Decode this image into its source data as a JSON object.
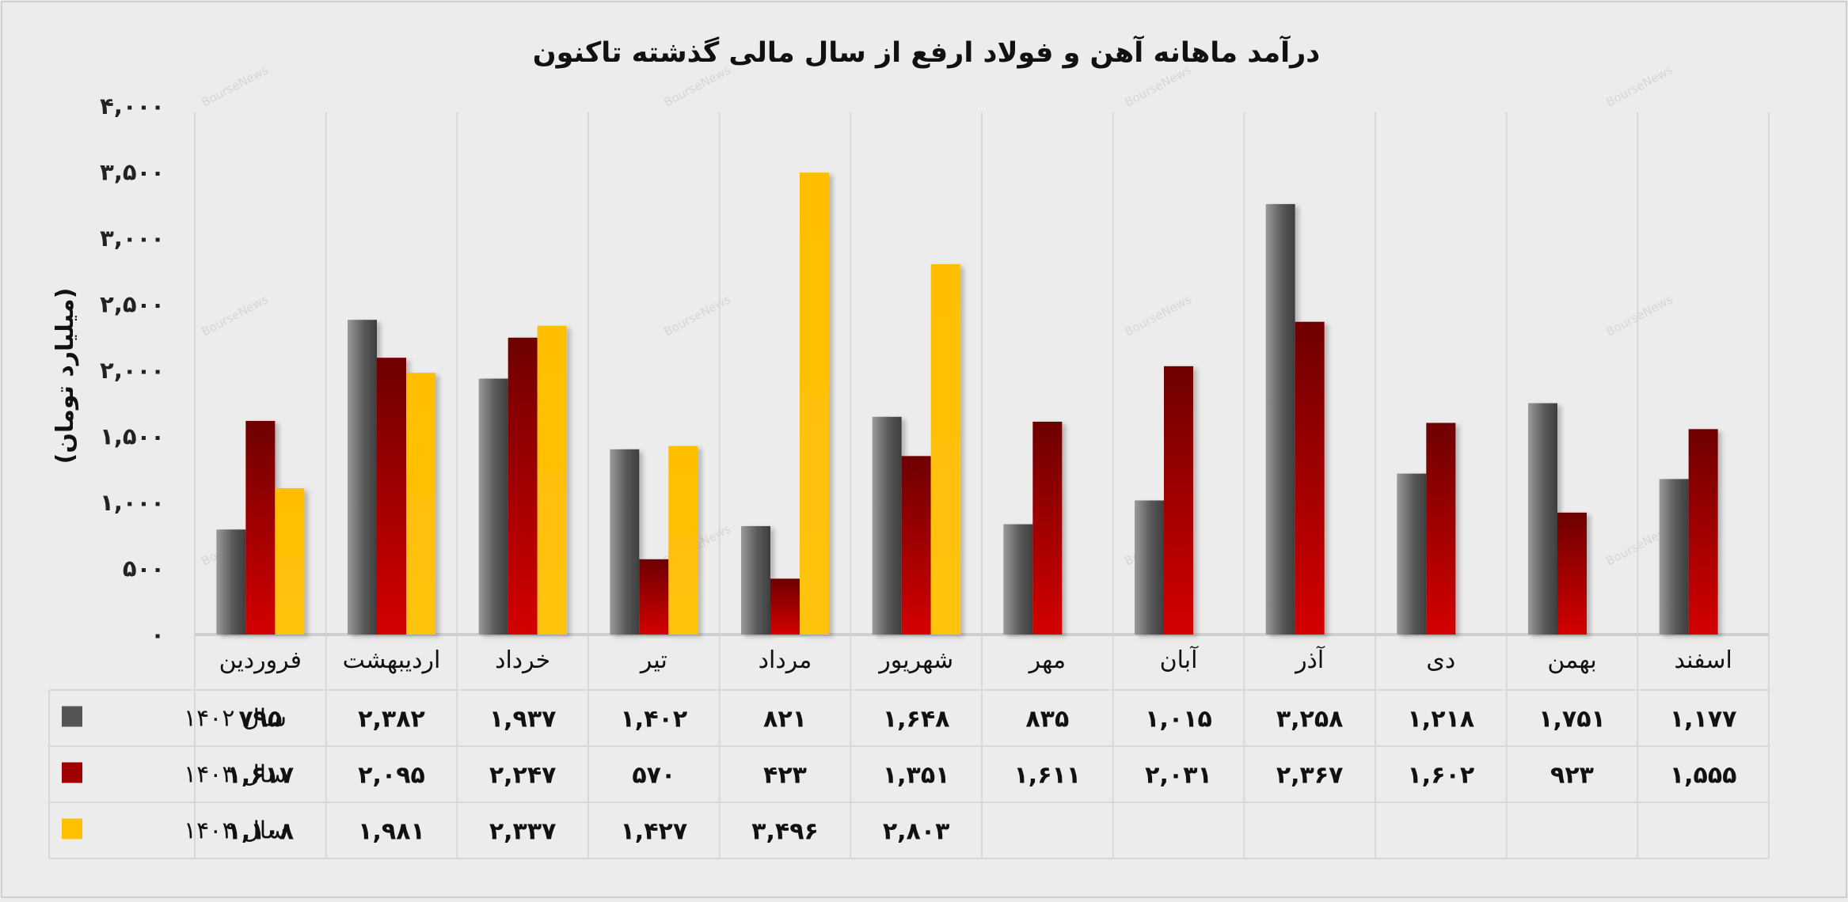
{
  "chart_data": {
    "type": "bar",
    "title": "درآمد ماهانه آهن و فولاد ارفع از سال مالی گذشته تاکنون",
    "ylabel": "(میلیارد تومان)",
    "xlabel": "",
    "ylim": [
      0,
      4000
    ],
    "yticks": [
      0,
      500,
      1000,
      1500,
      2000,
      2500,
      3000,
      3500,
      4000
    ],
    "ytick_labels": [
      "۰",
      "۵۰۰",
      "۱,۰۰۰",
      "۱,۵۰۰",
      "۲,۰۰۰",
      "۲,۵۰۰",
      "۳,۰۰۰",
      "۳,۵۰۰",
      "۴,۰۰۰"
    ],
    "grid": "vertical",
    "legend": "data-table-left",
    "categories": [
      "فروردین",
      "اردیبهشت",
      "خرداد",
      "تیر",
      "مرداد",
      "شهریور",
      "مهر",
      "آبان",
      "آذر",
      "دی",
      "بهمن",
      "اسفند"
    ],
    "series": [
      {
        "name": "سال ۱۴۰۲",
        "color": "#555555",
        "values": [
          795,
          2382,
          1937,
          1402,
          821,
          1648,
          835,
          1015,
          3258,
          1218,
          1751,
          1177
        ],
        "labels": [
          "۷۹۵",
          "۲,۳۸۲",
          "۱,۹۳۷",
          "۱,۴۰۲",
          "۸۲۱",
          "۱,۶۴۸",
          "۸۳۵",
          "۱,۰۱۵",
          "۳,۲۵۸",
          "۱,۲۱۸",
          "۱,۷۵۱",
          "۱,۱۷۷"
        ]
      },
      {
        "name": "سال ۱۴۰۳",
        "color": "#a00000",
        "values": [
          1617,
          2095,
          2247,
          570,
          423,
          1351,
          1611,
          2031,
          2367,
          1602,
          923,
          1555
        ],
        "labels": [
          "۱,۶۱۷",
          "۲,۰۹۵",
          "۲,۲۴۷",
          "۵۷۰",
          "۴۲۳",
          "۱,۳۵۱",
          "۱,۶۱۱",
          "۲,۰۳۱",
          "۲,۳۶۷",
          "۱,۶۰۲",
          "۹۲۳",
          "۱,۵۵۵"
        ]
      },
      {
        "name": "سال ۱۴۰۴",
        "color": "#ffc000",
        "values": [
          1108,
          1981,
          2337,
          1427,
          3496,
          2803,
          null,
          null,
          null,
          null,
          null,
          null
        ],
        "labels": [
          "۱,۱۰۸",
          "۱,۹۸۱",
          "۲,۳۳۷",
          "۱,۴۲۷",
          "۳,۴۹۶",
          "۲,۸۰۳",
          "",
          "",
          "",
          "",
          "",
          ""
        ]
      }
    ],
    "watermark": "BourseNews"
  }
}
